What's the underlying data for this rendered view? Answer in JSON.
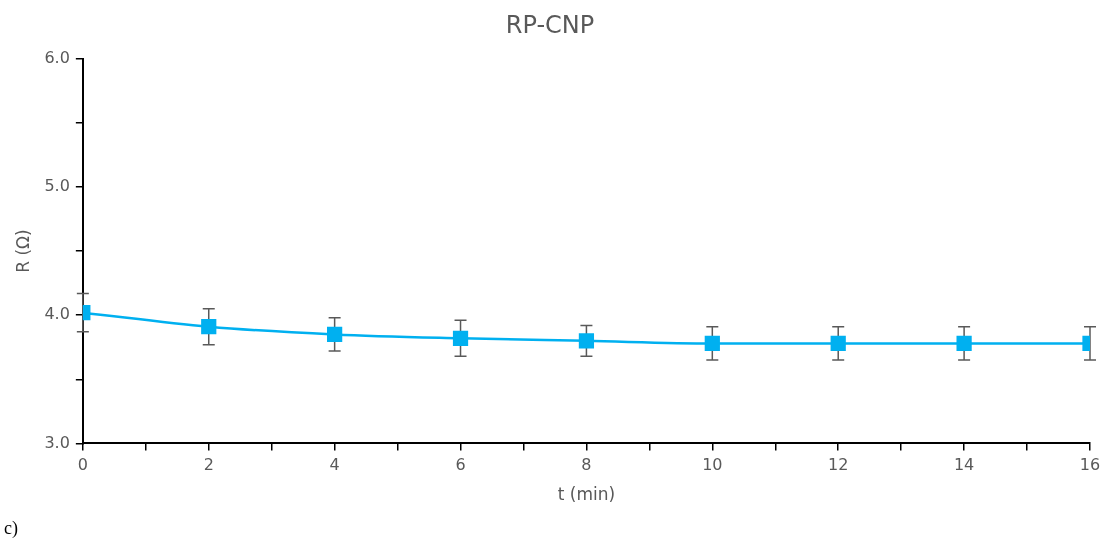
{
  "chart_data": {
    "type": "line",
    "title": "RP-CNP",
    "xlabel": "t (min)",
    "ylabel": "R (Ω)",
    "x": [
      0,
      2,
      4,
      6,
      8,
      10,
      12,
      14,
      16
    ],
    "series": [
      {
        "color": "#00b0f0",
        "values": [
          4.02,
          3.91,
          3.85,
          3.82,
          3.8,
          3.78,
          3.78,
          3.78,
          3.78
        ],
        "errors": [
          0.15,
          0.14,
          0.13,
          0.14,
          0.12,
          0.13,
          0.13,
          0.13,
          0.13
        ]
      }
    ],
    "xlim": [
      0,
      16
    ],
    "xticks": [
      0,
      {
        "value": 1,
        "label": null
      },
      2,
      {
        "value": 3,
        "label": null
      },
      4,
      {
        "value": 5,
        "label": null
      },
      6,
      {
        "value": 7,
        "label": null
      },
      8,
      {
        "value": 9,
        "label": null
      },
      10,
      {
        "value": 11,
        "label": null
      },
      12,
      {
        "value": 13,
        "label": null
      },
      14,
      {
        "value": 15,
        "label": null
      },
      16
    ],
    "ylim": [
      3,
      6
    ],
    "yticks": [
      {
        "value": 3,
        "label": "3.0"
      },
      {
        "value": 3.5,
        "label": null
      },
      {
        "value": 4,
        "label": "4.0"
      },
      {
        "value": 4.5,
        "label": null
      },
      {
        "value": 5,
        "label": "5.0"
      },
      {
        "value": 5.5,
        "label": null
      },
      {
        "value": 6,
        "label": "6.0"
      }
    ],
    "marker": "square",
    "line_style": "solid",
    "grid": false,
    "legend": false,
    "annotations": [
      "c)"
    ]
  }
}
